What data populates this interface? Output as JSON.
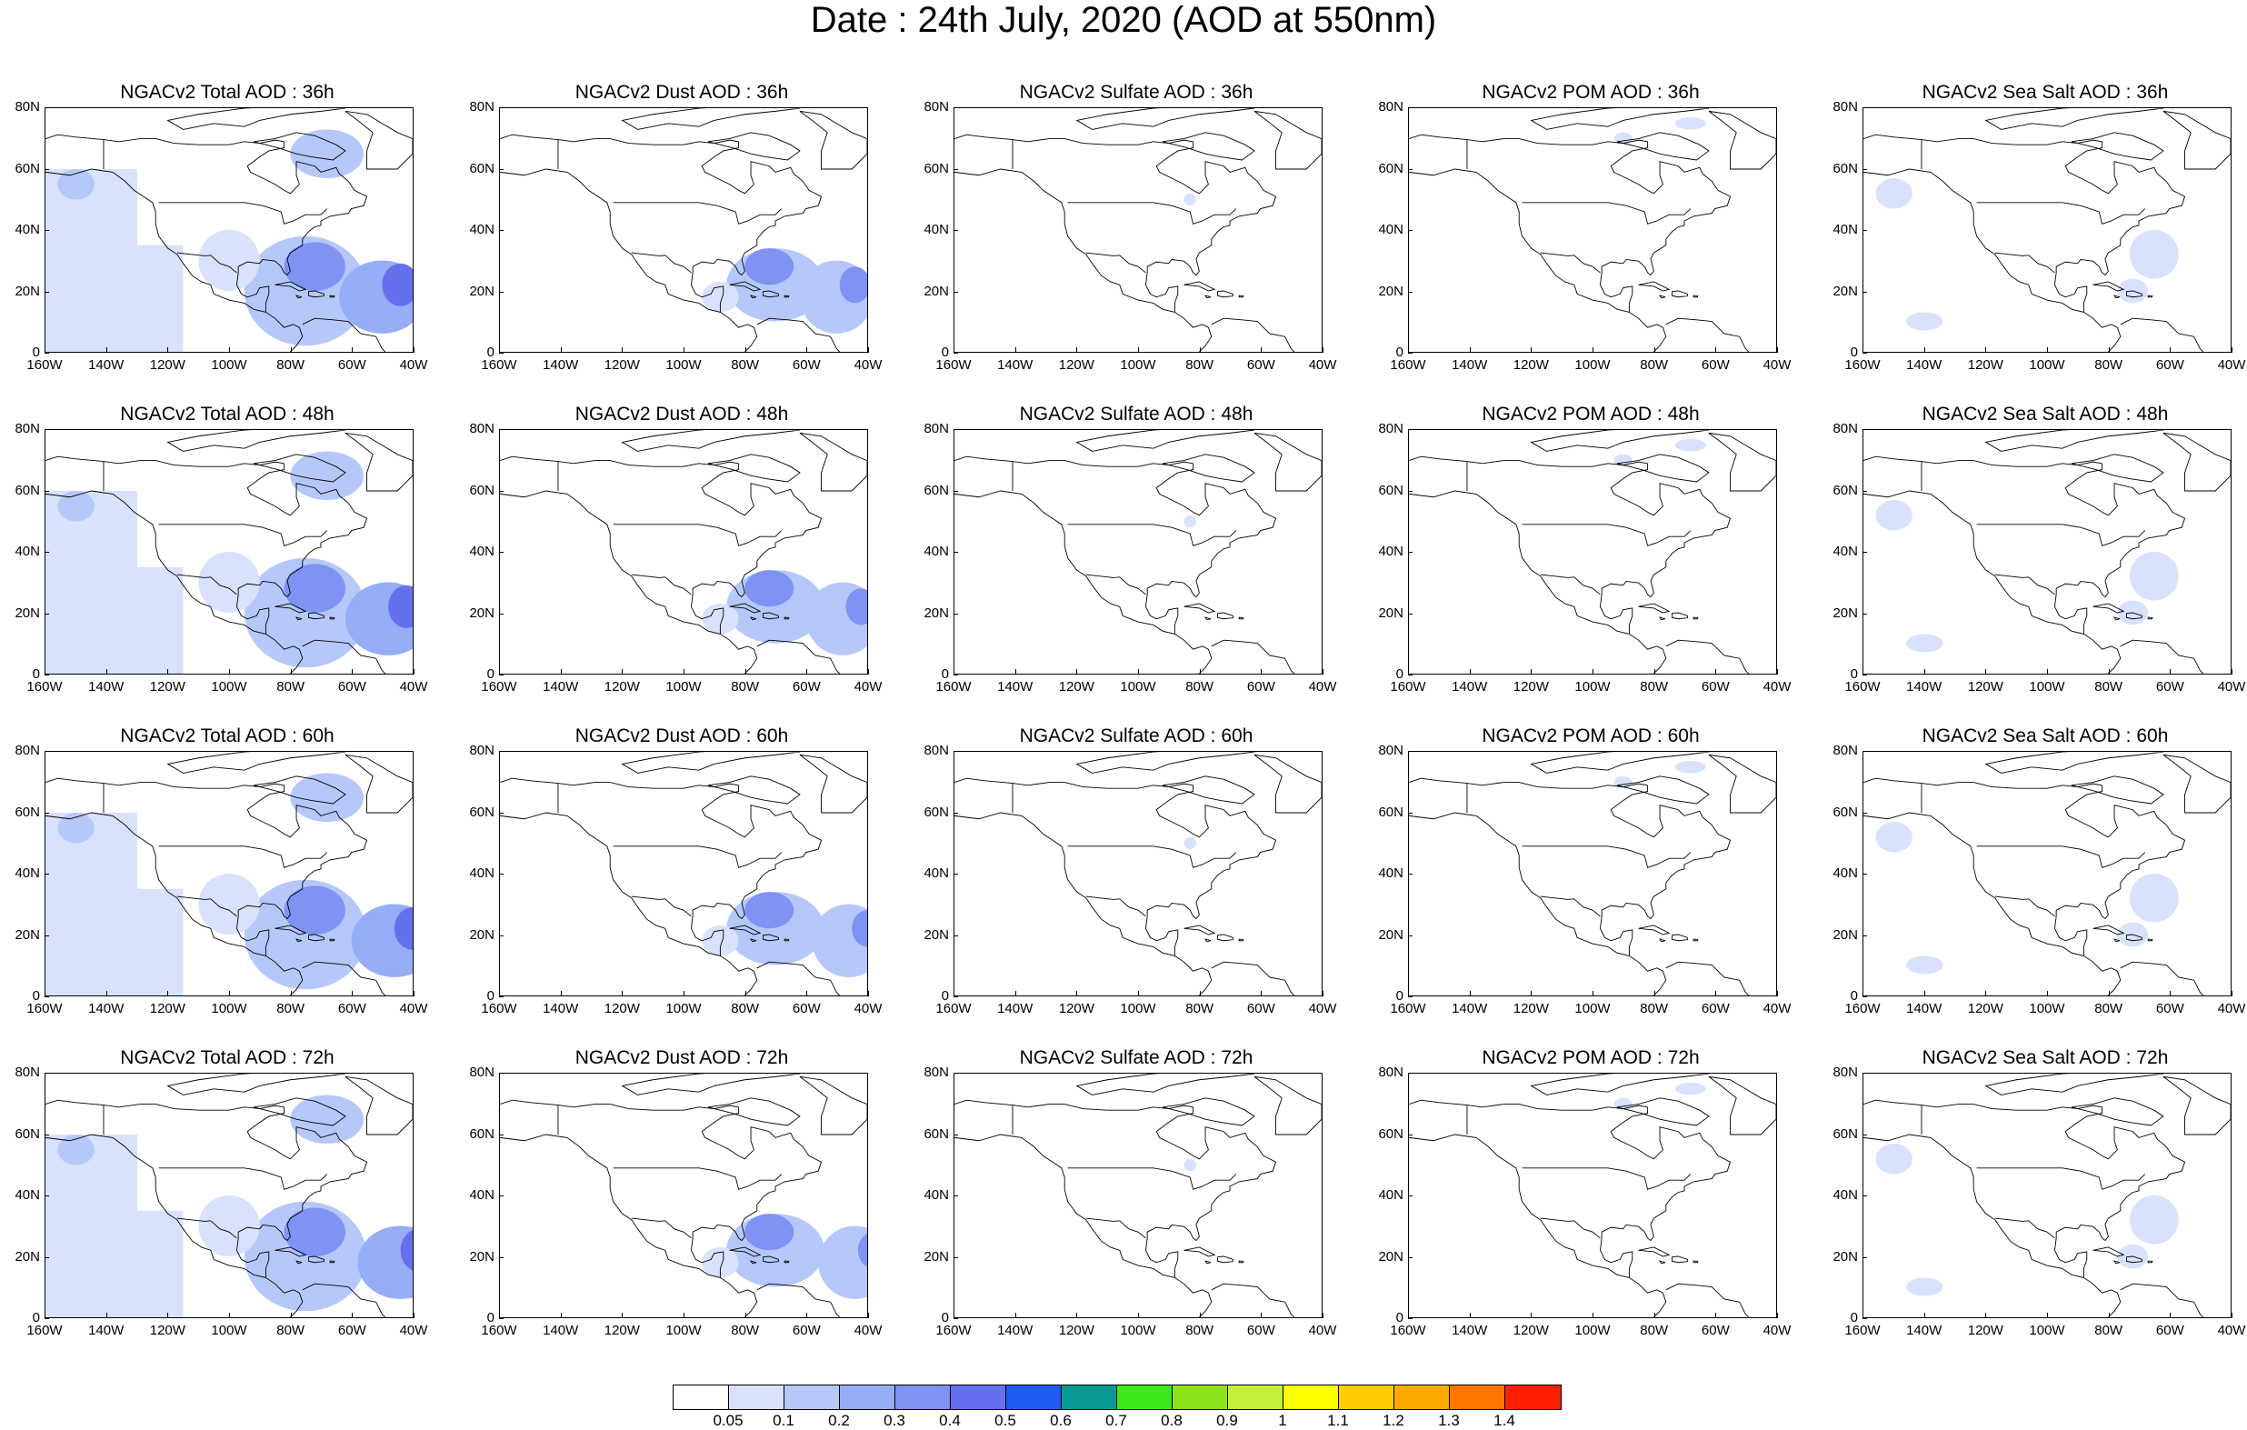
{
  "title": "Date : 24th July, 2020 (AOD at 550nm)",
  "lat_labels": [
    "80N",
    "60N",
    "40N",
    "20N",
    "0"
  ],
  "lon_labels": [
    "160W",
    "140W",
    "120W",
    "100W",
    "80W",
    "60W",
    "40W"
  ],
  "rows": [
    {
      "hour": "36h",
      "panels": [
        {
          "title": "NGACv2 Total AOD : 36h",
          "species": "total"
        },
        {
          "title": "NGACv2 Dust AOD : 36h",
          "species": "dust"
        },
        {
          "title": "NGACv2 Sulfate AOD : 36h",
          "species": "sulfate"
        },
        {
          "title": "NGACv2 POM AOD : 36h",
          "species": "pom"
        },
        {
          "title": "NGACv2 Sea Salt AOD : 36h",
          "species": "seasalt"
        }
      ]
    },
    {
      "hour": "48h",
      "panels": [
        {
          "title": "NGACv2 Total AOD : 48h",
          "species": "total"
        },
        {
          "title": "NGACv2 Dust AOD : 48h",
          "species": "dust"
        },
        {
          "title": "NGACv2 Sulfate AOD : 48h",
          "species": "sulfate"
        },
        {
          "title": "NGACv2 POM AOD : 48h",
          "species": "pom"
        },
        {
          "title": "NGACv2 Sea Salt AOD : 48h",
          "species": "seasalt"
        }
      ]
    },
    {
      "hour": "60h",
      "panels": [
        {
          "title": "NGACv2 Total AOD : 60h",
          "species": "total"
        },
        {
          "title": "NGACv2 Dust AOD : 60h",
          "species": "dust"
        },
        {
          "title": "NGACv2 Sulfate AOD : 60h",
          "species": "sulfate"
        },
        {
          "title": "NGACv2 POM AOD : 60h",
          "species": "pom"
        },
        {
          "title": "NGACv2 Sea Salt AOD : 60h",
          "species": "seasalt"
        }
      ]
    },
    {
      "hour": "72h",
      "panels": [
        {
          "title": "NGACv2 Total AOD : 72h",
          "species": "total"
        },
        {
          "title": "NGACv2 Dust AOD : 72h",
          "species": "dust"
        },
        {
          "title": "NGACv2 Sulfate AOD : 72h",
          "species": "sulfate"
        },
        {
          "title": "NGACv2 POM AOD : 72h",
          "species": "pom"
        },
        {
          "title": "NGACv2 Sea Salt  AOD : 72h",
          "species": "seasalt"
        }
      ]
    }
  ],
  "colorbar": {
    "colors": [
      "#ffffff",
      "#d8e2fc",
      "#b6c8fa",
      "#96aef7",
      "#7f93f4",
      "#6670ee",
      "#1e5cf2",
      "#0a9a95",
      "#3ee81a",
      "#8de31a",
      "#c6ee3c",
      "#ffff00",
      "#ffcc00",
      "#ffaa00",
      "#ff7700",
      "#ff2000"
    ],
    "labels": [
      "0.05",
      "0.1",
      "0.2",
      "0.3",
      "0.4",
      "0.5",
      "0.6",
      "0.7",
      "0.8",
      "0.9",
      "1",
      "1.1",
      "1.2",
      "1.3",
      "1.4"
    ]
  }
}
